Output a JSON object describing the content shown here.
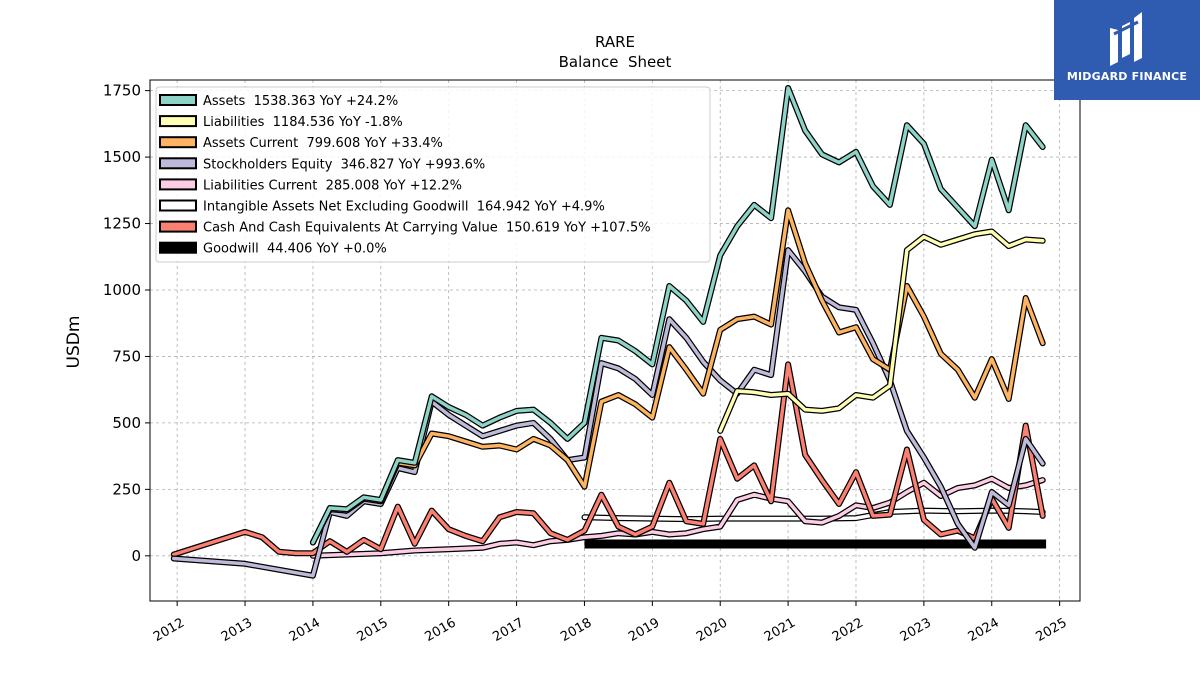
{
  "chart_data": {
    "type": "line",
    "title": "RARE",
    "subtitle": "Balance  Sheet",
    "ylabel": "USDm",
    "xlabel": "",
    "ylim": [
      -170,
      1790
    ],
    "xlim": [
      2011.6,
      2025.3
    ],
    "yticks": [
      0,
      250,
      500,
      750,
      1000,
      1250,
      1500,
      1750
    ],
    "xticks": [
      "2012",
      "2013",
      "2014",
      "2015",
      "2016",
      "2017",
      "2018",
      "2019",
      "2020",
      "2021",
      "2022",
      "2023",
      "2024",
      "2025"
    ],
    "grid": true,
    "legend_position": "top-left",
    "series": [
      {
        "name": "Assets",
        "legend": "Assets  1538.363 YoY +24.2%",
        "color": "#8dd3c7",
        "x": [
          2014.0,
          2014.25,
          2014.5,
          2014.75,
          2015.0,
          2015.25,
          2015.5,
          2015.75,
          2016.0,
          2016.25,
          2016.5,
          2016.75,
          2017.0,
          2017.25,
          2017.5,
          2017.75,
          2018.0,
          2018.25,
          2018.5,
          2018.75,
          2019.0,
          2019.25,
          2019.5,
          2019.75,
          2020.0,
          2020.25,
          2020.5,
          2020.75,
          2021.0,
          2021.25,
          2021.5,
          2021.75,
          2022.0,
          2022.25,
          2022.5,
          2022.75,
          2023.0,
          2023.25,
          2023.5,
          2023.75,
          2024.0,
          2024.25,
          2024.5,
          2024.75
        ],
        "y": [
          50,
          180,
          175,
          220,
          210,
          360,
          350,
          600,
          560,
          530,
          490,
          520,
          545,
          550,
          500,
          440,
          500,
          820,
          810,
          770,
          720,
          1015,
          960,
          880,
          1130,
          1240,
          1320,
          1270,
          1760,
          1600,
          1510,
          1480,
          1520,
          1390,
          1320,
          1620,
          1550,
          1380,
          1310,
          1240,
          1490,
          1300,
          1620,
          1538
        ]
      },
      {
        "name": "Liabilities",
        "legend": "Liabilities  1184.536 YoY -1.8%",
        "color": "#ffffb3",
        "x": [
          2020.0,
          2020.25,
          2020.5,
          2020.75,
          2021.0,
          2021.25,
          2021.5,
          2021.75,
          2022.0,
          2022.25,
          2022.5,
          2022.75,
          2023.0,
          2023.25,
          2023.5,
          2023.75,
          2024.0,
          2024.25,
          2024.5,
          2024.75
        ],
        "y": [
          470,
          620,
          615,
          605,
          610,
          550,
          545,
          555,
          605,
          595,
          640,
          1150,
          1200,
          1170,
          1190,
          1210,
          1220,
          1165,
          1190,
          1185
        ]
      },
      {
        "name": "Assets Current",
        "legend": "Assets Current  799.608 YoY +33.4%",
        "color": "#fdb462",
        "x": [
          2014.0,
          2014.25,
          2014.5,
          2014.75,
          2015.0,
          2015.25,
          2015.5,
          2015.75,
          2016.0,
          2016.25,
          2016.5,
          2016.75,
          2017.0,
          2017.25,
          2017.5,
          2017.75,
          2018.0,
          2018.25,
          2018.5,
          2018.75,
          2019.0,
          2019.25,
          2019.5,
          2019.75,
          2020.0,
          2020.25,
          2020.5,
          2020.75,
          2021.0,
          2021.25,
          2021.5,
          2021.75,
          2022.0,
          2022.25,
          2022.5,
          2022.75,
          2023.0,
          2023.25,
          2023.5,
          2023.75,
          2024.0,
          2024.25,
          2024.5,
          2024.75
        ],
        "y": [
          50,
          175,
          170,
          215,
          205,
          350,
          340,
          460,
          450,
          430,
          410,
          415,
          400,
          440,
          415,
          360,
          260,
          580,
          605,
          570,
          520,
          785,
          700,
          610,
          850,
          890,
          900,
          870,
          1300,
          1100,
          960,
          840,
          860,
          740,
          700,
          1015,
          900,
          760,
          700,
          595,
          740,
          590,
          970,
          800
        ]
      },
      {
        "name": "Stockholders Equity",
        "legend": "Stockholders Equity  346.827 YoY +993.6%",
        "color": "#bebada",
        "x": [
          2011.95,
          2013.0,
          2014.0,
          2014.25,
          2014.5,
          2014.75,
          2015.0,
          2015.25,
          2015.5,
          2015.75,
          2016.0,
          2016.25,
          2016.5,
          2016.75,
          2017.0,
          2017.25,
          2017.5,
          2017.75,
          2018.0,
          2018.25,
          2018.5,
          2018.75,
          2019.0,
          2019.25,
          2019.5,
          2019.75,
          2020.0,
          2020.25,
          2020.5,
          2020.75,
          2021.0,
          2021.25,
          2021.5,
          2021.75,
          2022.0,
          2022.25,
          2022.5,
          2022.75,
          2023.0,
          2023.25,
          2023.5,
          2023.75,
          2024.0,
          2024.25,
          2024.5,
          2024.75
        ],
        "y": [
          -10,
          -30,
          -75,
          165,
          150,
          205,
          195,
          330,
          315,
          580,
          530,
          490,
          450,
          470,
          490,
          500,
          440,
          360,
          370,
          725,
          705,
          665,
          605,
          890,
          820,
          730,
          660,
          610,
          700,
          680,
          1150,
          1070,
          975,
          935,
          925,
          800,
          660,
          470,
          370,
          260,
          120,
          30,
          240,
          190,
          440,
          347
        ]
      },
      {
        "name": "Liabilities Current",
        "legend": "Liabilities Current  285.008 YoY +12.2%",
        "color": "#fccde5",
        "x": [
          2014.0,
          2014.5,
          2015.0,
          2015.5,
          2016.0,
          2016.5,
          2016.75,
          2017.0,
          2017.25,
          2017.5,
          2017.75,
          2018.0,
          2018.25,
          2018.5,
          2018.75,
          2019.0,
          2019.25,
          2019.5,
          2019.75,
          2020.0,
          2020.25,
          2020.5,
          2020.75,
          2021.0,
          2021.25,
          2021.5,
          2021.75,
          2022.0,
          2022.25,
          2022.5,
          2022.75,
          2023.0,
          2023.25,
          2023.5,
          2023.75,
          2024.0,
          2024.25,
          2024.5,
          2024.75
        ],
        "y": [
          0,
          5,
          10,
          20,
          25,
          30,
          45,
          50,
          40,
          55,
          60,
          70,
          75,
          85,
          80,
          90,
          80,
          85,
          100,
          110,
          210,
          230,
          215,
          205,
          130,
          125,
          150,
          190,
          180,
          200,
          240,
          275,
          225,
          255,
          265,
          290,
          255,
          265,
          285
        ]
      },
      {
        "name": "Intangible Assets Net Excluding Goodwill",
        "legend": "Intangible Assets Net Excluding Goodwill  164.942 YoY +4.9%",
        "color": "#ffffff",
        "x": [
          2018.0,
          2018.5,
          2019.0,
          2019.5,
          2020.0,
          2020.5,
          2021.0,
          2021.5,
          2022.0,
          2022.5,
          2023.0,
          2023.5,
          2024.0,
          2024.5,
          2024.75
        ],
        "y": [
          145,
          142,
          140,
          138,
          140,
          140,
          140,
          140,
          142,
          165,
          170,
          168,
          170,
          168,
          165
        ]
      },
      {
        "name": "Cash And Cash Equivalents At Carrying Value",
        "legend": "Cash And Cash Equivalents At Carrying Value  150.619 YoY +107.5%",
        "color": "#fb8072",
        "x": [
          2011.95,
          2013.0,
          2013.25,
          2013.5,
          2013.75,
          2014.0,
          2014.25,
          2014.5,
          2014.75,
          2015.0,
          2015.25,
          2015.5,
          2015.75,
          2016.0,
          2016.25,
          2016.5,
          2016.75,
          2017.0,
          2017.25,
          2017.5,
          2017.75,
          2018.0,
          2018.25,
          2018.5,
          2018.75,
          2019.0,
          2019.25,
          2019.5,
          2019.75,
          2020.0,
          2020.25,
          2020.5,
          2020.75,
          2021.0,
          2021.25,
          2021.5,
          2021.75,
          2022.0,
          2022.25,
          2022.5,
          2022.75,
          2023.0,
          2023.25,
          2023.5,
          2023.75,
          2024.0,
          2024.25,
          2024.5,
          2024.75
        ],
        "y": [
          5,
          90,
          70,
          15,
          10,
          10,
          55,
          15,
          60,
          25,
          185,
          45,
          170,
          100,
          75,
          55,
          145,
          165,
          160,
          85,
          60,
          95,
          230,
          110,
          80,
          110,
          275,
          130,
          120,
          440,
          290,
          340,
          205,
          720,
          380,
          285,
          195,
          315,
          150,
          155,
          400,
          135,
          80,
          95,
          65,
          215,
          105,
          490,
          150
        ]
      },
      {
        "name": "Goodwill",
        "legend": "Goodwill  44.406 YoY +0.0%",
        "color": "#000000",
        "x": [
          2018.0,
          2024.8
        ],
        "y": [
          44.4,
          44.4
        ]
      }
    ]
  },
  "logo": {
    "text": "MIDGARD FINANCE"
  }
}
